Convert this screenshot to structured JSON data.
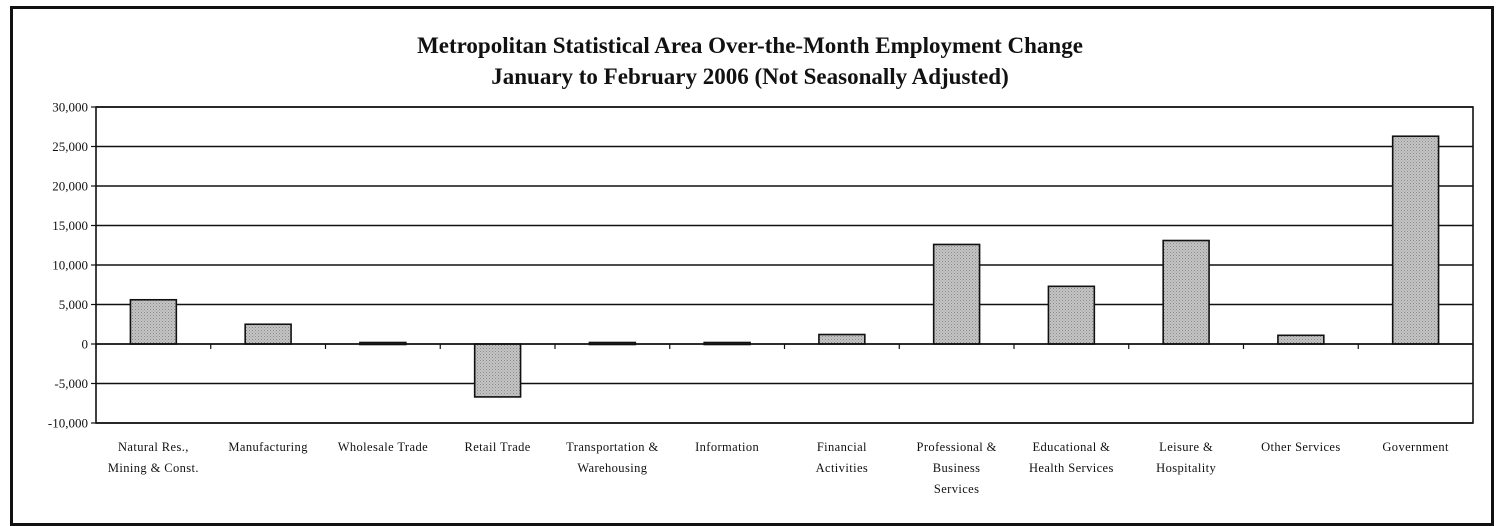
{
  "chart_data": {
    "type": "bar",
    "title": "Metropolitan Statistical Area Over-the-Month Employment Change",
    "subtitle": "January to February 2006 (Not Seasonally Adjusted)",
    "xlabel": "",
    "ylabel": "",
    "ylim": [
      -10000,
      30000
    ],
    "yticks": [
      "30,000",
      "25,000",
      "20,000",
      "15,000",
      "10,000",
      "5,000",
      "0",
      "-5,000",
      "-10,000"
    ],
    "ytick_values": [
      30000,
      25000,
      20000,
      15000,
      10000,
      5000,
      0,
      -5000,
      -10000
    ],
    "grid": true,
    "legend": "none",
    "categories": [
      [
        "Natural Res.,",
        "Mining & Const."
      ],
      [
        "Manufacturing"
      ],
      [
        "Wholesale Trade"
      ],
      [
        "Retail Trade"
      ],
      [
        "Transportation &",
        "Warehousing"
      ],
      [
        "Information"
      ],
      [
        "Financial",
        "Activities"
      ],
      [
        "Professional &",
        "Business",
        "Services"
      ],
      [
        "Educational &",
        "Health Services"
      ],
      [
        "Leisure &",
        "Hospitality"
      ],
      [
        "Other Services"
      ],
      [
        "Government"
      ]
    ],
    "values": [
      5600,
      2500,
      -200,
      -6700,
      200,
      200,
      1200,
      12600,
      7300,
      13100,
      1100,
      26300
    ],
    "colors": {
      "bar_fill": "#b3b3b3",
      "bar_stroke": "#111111",
      "grid": "#111111"
    }
  }
}
